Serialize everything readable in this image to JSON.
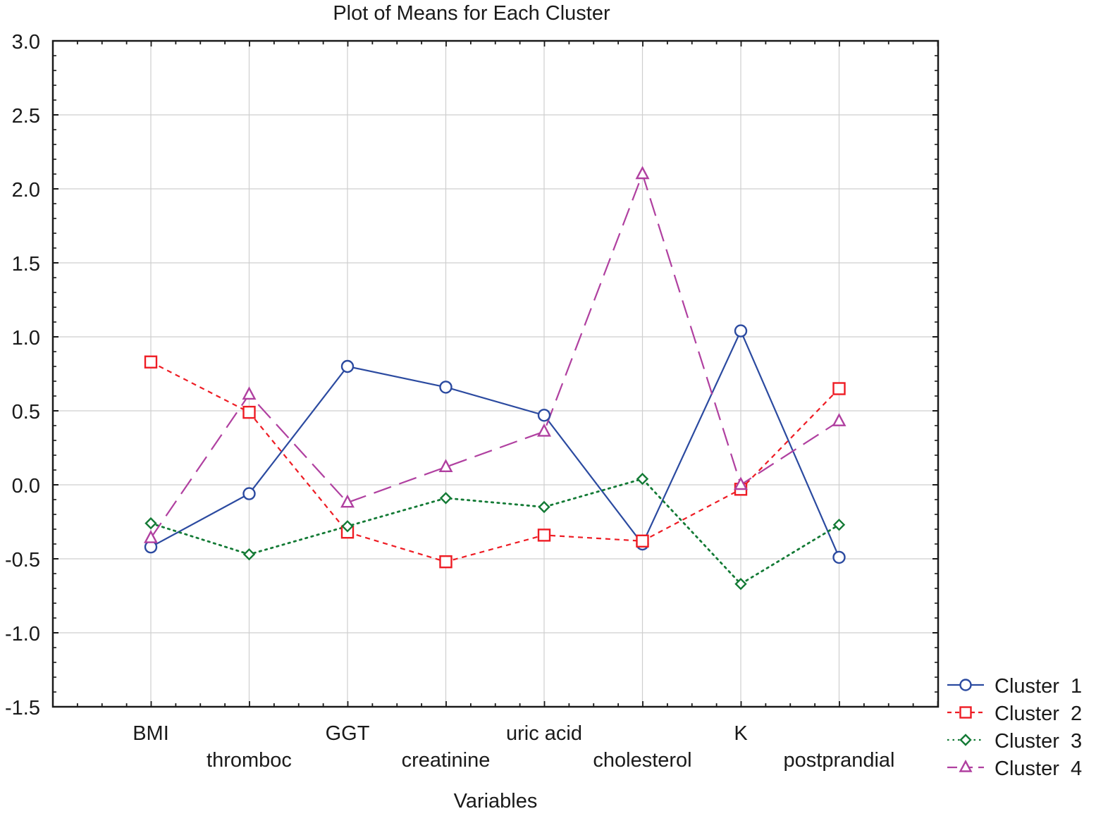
{
  "chart_data": {
    "type": "line",
    "title": "Plot of Means for Each Cluster",
    "xlabel": "Variables",
    "ylabel": "",
    "ylim": [
      -1.5,
      3.0
    ],
    "yticks": [
      3.0,
      2.5,
      2.0,
      1.5,
      1.0,
      0.5,
      0.0,
      -0.5,
      -1.0,
      -1.5
    ],
    "ytick_labels": [
      "3.0",
      "2.5",
      "2.0",
      "1.5",
      "1.0",
      "0.5",
      "0.0",
      "-0.5",
      "-1.0",
      "-1.5"
    ],
    "grid": true,
    "legend_position": "right-bottom",
    "categories": [
      "BMI",
      "thromboc",
      "GGT",
      "creatinine",
      "uric acid",
      "cholesterol",
      "K",
      "postprandial"
    ],
    "series": [
      {
        "name": "Cluster  1",
        "color": "#2b4aa0",
        "marker": "circle",
        "dash": "solid",
        "values": [
          -0.42,
          -0.06,
          0.8,
          0.66,
          0.47,
          -0.4,
          1.04,
          -0.49
        ]
      },
      {
        "name": "Cluster  2",
        "color": "#ee1c24",
        "marker": "square",
        "dash": "dashed-short",
        "values": [
          0.83,
          0.49,
          -0.32,
          -0.52,
          -0.34,
          -0.38,
          -0.03,
          0.65
        ]
      },
      {
        "name": "Cluster  3",
        "color": "#137a35",
        "marker": "diamond",
        "dash": "dotted",
        "values": [
          -0.26,
          -0.47,
          -0.28,
          -0.09,
          -0.15,
          0.04,
          -0.67,
          -0.27
        ]
      },
      {
        "name": "Cluster  4",
        "color": "#b040a0",
        "marker": "triangle",
        "dash": "dashed-long",
        "values": [
          -0.36,
          0.61,
          -0.12,
          0.12,
          0.36,
          2.1,
          0.0,
          0.43
        ]
      }
    ]
  }
}
